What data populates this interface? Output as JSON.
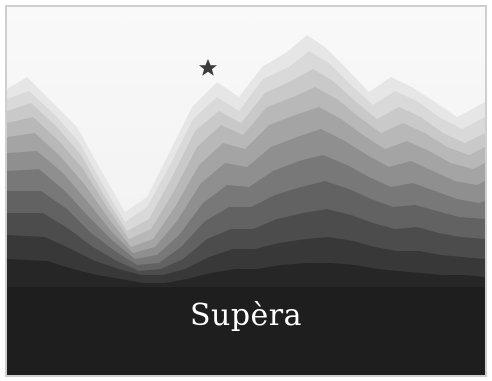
{
  "artwork": {
    "title": "Supèra",
    "icon": "star-icon",
    "colors": {
      "sky": "#f7f7f7",
      "ink": "#1e1e1e",
      "title": "#ffffff",
      "border": "#cfcfcf"
    }
  }
}
